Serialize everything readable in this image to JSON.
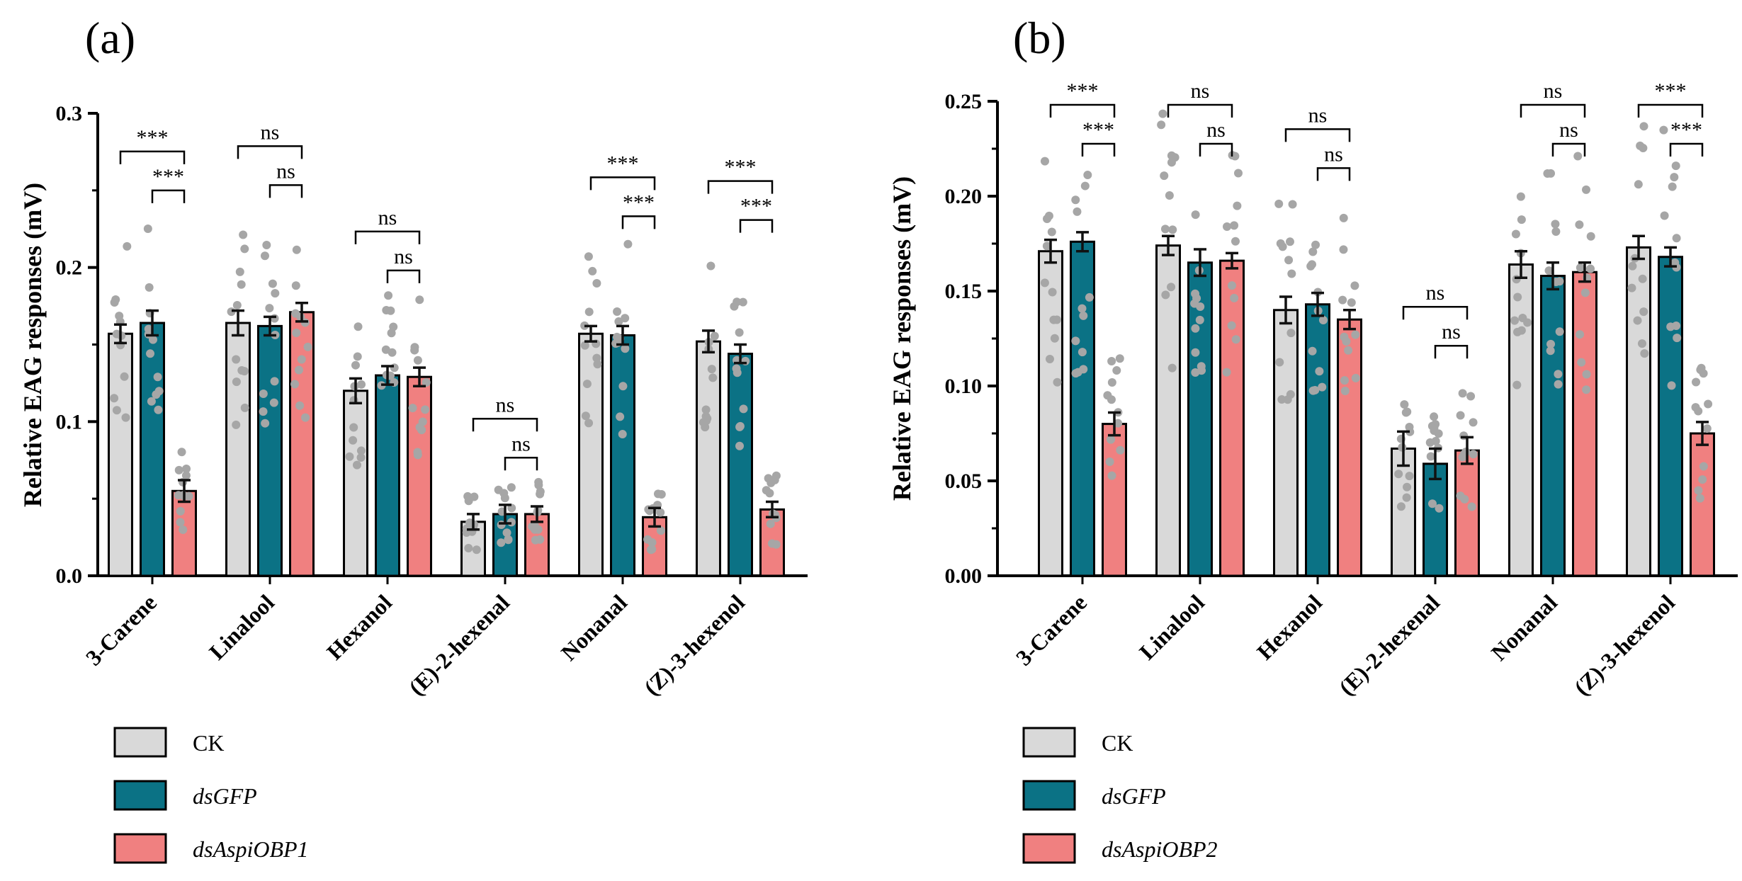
{
  "colors": {
    "CK": "#d9d9d9",
    "dsGFP": "#0b7285",
    "dsAspi": "#f08080",
    "points": "#a6a6a6",
    "axis": "#000000"
  },
  "chart_data": [
    {
      "type": "bar",
      "panel_label": "(a)",
      "ylabel": "Relative EAG responses (mV)",
      "ylim": [
        0,
        0.3
      ],
      "yticks": [
        "0.0",
        "0.1",
        "0.2",
        "0.3"
      ],
      "categories": [
        "3-Carene",
        "Linalool",
        "Hexanol",
        "(E)-2-hexenal",
        "Nonanal",
        "(Z)-3-hexenol"
      ],
      "series": [
        {
          "name": "CK",
          "values": [
            0.157,
            0.164,
            0.12,
            0.035,
            0.157,
            0.152
          ],
          "errors": [
            0.006,
            0.008,
            0.008,
            0.005,
            0.005,
            0.007
          ]
        },
        {
          "name": "dsGFP",
          "values": [
            0.164,
            0.162,
            0.13,
            0.04,
            0.156,
            0.144
          ],
          "errors": [
            0.008,
            0.006,
            0.006,
            0.006,
            0.006,
            0.006
          ]
        },
        {
          "name": "dsAspiOBP1",
          "values": [
            0.055,
            0.171,
            0.129,
            0.04,
            0.038,
            0.043
          ],
          "errors": [
            0.007,
            0.006,
            0.006,
            0.005,
            0.006,
            0.005
          ]
        }
      ],
      "significance": [
        {
          "category": 0,
          "outer": "***",
          "inner": "***"
        },
        {
          "category": 1,
          "outer": "ns",
          "inner": "ns"
        },
        {
          "category": 2,
          "outer": "ns",
          "inner": "ns"
        },
        {
          "category": 3,
          "outer": "ns",
          "inner": "ns"
        },
        {
          "category": 4,
          "outer": "***",
          "inner": "***"
        },
        {
          "category": 5,
          "outer": "***",
          "inner": "***"
        }
      ],
      "legend": [
        {
          "key": "CK",
          "label": "CK",
          "italic": false
        },
        {
          "key": "dsGFP",
          "label": "dsGFP",
          "italic": true
        },
        {
          "key": "dsAspi",
          "label": "dsAspiOBP1",
          "italic": true
        }
      ]
    },
    {
      "type": "bar",
      "panel_label": "(b)",
      "ylabel": "Relative EAG responses (mV)",
      "ylim": [
        0,
        0.25
      ],
      "yticks": [
        "0.00",
        "0.05",
        "0.10",
        "0.15",
        "0.20",
        "0.25"
      ],
      "categories": [
        "3-Carene",
        "Linalool",
        "Hexanol",
        "(E)-2-hexenal",
        "Nonanal",
        "(Z)-3-hexenol"
      ],
      "series": [
        {
          "name": "CK",
          "values": [
            0.171,
            0.174,
            0.14,
            0.067,
            0.164,
            0.173
          ],
          "errors": [
            0.006,
            0.005,
            0.007,
            0.009,
            0.007,
            0.006
          ]
        },
        {
          "name": "dsGFP",
          "values": [
            0.176,
            0.165,
            0.143,
            0.059,
            0.158,
            0.168
          ],
          "errors": [
            0.005,
            0.007,
            0.006,
            0.008,
            0.007,
            0.005
          ]
        },
        {
          "name": "dsAspiOBP2",
          "values": [
            0.08,
            0.166,
            0.135,
            0.066,
            0.16,
            0.075
          ],
          "errors": [
            0.006,
            0.004,
            0.005,
            0.007,
            0.005,
            0.006
          ]
        }
      ],
      "significance": [
        {
          "category": 0,
          "outer": "***",
          "inner": "***"
        },
        {
          "category": 1,
          "outer": "ns",
          "inner": "ns"
        },
        {
          "category": 2,
          "outer": "ns",
          "inner": "ns"
        },
        {
          "category": 3,
          "outer": "ns",
          "inner": "ns"
        },
        {
          "category": 4,
          "outer": "ns",
          "inner": "ns"
        },
        {
          "category": 5,
          "outer": "***",
          "inner": "***"
        }
      ],
      "legend": [
        {
          "key": "CK",
          "label": "CK",
          "italic": false
        },
        {
          "key": "dsGFP",
          "label": "dsGFP",
          "italic": true
        },
        {
          "key": "dsAspi",
          "label": "dsAspiOBP2",
          "italic": true
        }
      ]
    }
  ]
}
